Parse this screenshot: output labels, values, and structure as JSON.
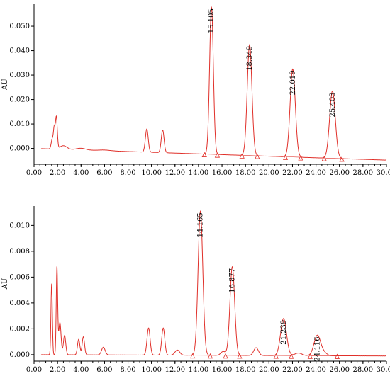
{
  "chart_data": [
    {
      "type": "line",
      "ylabel": "AU",
      "xlim": [
        0,
        30
      ],
      "ylim": [
        -0.0065,
        0.059
      ],
      "x_ticks": [
        0,
        2,
        4,
        6,
        8,
        10,
        12,
        14,
        16,
        18,
        20,
        22,
        24,
        26,
        28,
        30
      ],
      "x_tick_labels": [
        "0.00",
        "2.00",
        "4.00",
        "6.00",
        "8.00",
        "10.00",
        "12.00",
        "14.00",
        "16.00",
        "18.00",
        "20.00",
        "22.00",
        "24.00",
        "26.00",
        "28.00",
        "30.00"
      ],
      "y_ticks": [
        0.0,
        0.01,
        0.02,
        0.03,
        0.04,
        0.05
      ],
      "y_tick_labels": [
        "0.000",
        "0.010",
        "0.020",
        "0.030",
        "0.040",
        "0.050"
      ],
      "baseline": [
        [
          0,
          0.0
        ],
        [
          30,
          -0.0048
        ]
      ],
      "noise": [
        [
          1.55,
          0.004,
          0.09
        ],
        [
          1.72,
          0.008,
          0.07
        ],
        [
          1.9,
          0.013,
          0.08
        ],
        [
          2.5,
          0.0015,
          0.3
        ],
        [
          4.0,
          0.0007,
          0.4
        ],
        [
          6.0,
          0.0003,
          0.5
        ],
        [
          9.6,
          0.0095,
          0.12
        ],
        [
          10.95,
          0.0093,
          0.12
        ]
      ],
      "peaks": [
        {
          "label": "15.105",
          "x": 15.105,
          "y": 0.0578,
          "sigma": 0.16,
          "start": 14.5,
          "end": 15.6
        },
        {
          "label": "18.349",
          "x": 18.349,
          "y": 0.0425,
          "sigma": 0.2,
          "start": 17.7,
          "end": 19.0
        },
        {
          "label": "22.019",
          "x": 22.019,
          "y": 0.0325,
          "sigma": 0.22,
          "start": 21.4,
          "end": 22.7
        },
        {
          "label": "25.403",
          "x": 25.403,
          "y": 0.0235,
          "sigma": 0.24,
          "start": 24.7,
          "end": 26.2
        }
      ]
    },
    {
      "type": "line",
      "ylabel": "AU",
      "xlim": [
        0,
        30
      ],
      "ylim": [
        -0.0005,
        0.0115
      ],
      "x_ticks": [
        0,
        2,
        4,
        6,
        8,
        10,
        12,
        14,
        16,
        18,
        20,
        22,
        24,
        26,
        28,
        30
      ],
      "x_tick_labels": [
        "0.00",
        "2.00",
        "4.00",
        "6.00",
        "8.00",
        "10.00",
        "12.00",
        "14.00",
        "16.00",
        "18.00",
        "20.00",
        "22.00",
        "24.00",
        "26.00",
        "28.00",
        "30.00"
      ],
      "y_ticks": [
        0.0,
        0.002,
        0.004,
        0.006,
        0.008,
        0.01
      ],
      "y_tick_labels": [
        "0.000",
        "0.002",
        "0.004",
        "0.006",
        "0.008",
        "0.010"
      ],
      "baseline": [
        [
          0,
          0.0
        ],
        [
          30,
          -0.0001
        ]
      ],
      "noise": [
        [
          1.5,
          0.0055,
          0.06
        ],
        [
          1.95,
          0.0068,
          0.06
        ],
        [
          2.2,
          0.0025,
          0.1
        ],
        [
          2.6,
          0.0015,
          0.1
        ],
        [
          3.8,
          0.0012,
          0.1
        ],
        [
          4.2,
          0.0014,
          0.1
        ],
        [
          5.9,
          0.0006,
          0.15
        ],
        [
          9.75,
          0.0021,
          0.13
        ],
        [
          11.0,
          0.0021,
          0.13
        ],
        [
          12.2,
          0.0004,
          0.2
        ],
        [
          16.1,
          0.0003,
          0.2
        ],
        [
          18.9,
          0.0006,
          0.2
        ],
        [
          22.5,
          0.0002,
          0.3
        ],
        [
          24.7,
          0.0002,
          0.25
        ]
      ],
      "peaks": [
        {
          "label": "14.165",
          "x": 14.165,
          "y": 0.0111,
          "sigma": 0.2,
          "start": 13.5,
          "end": 15.0
        },
        {
          "label": "16.877",
          "x": 16.877,
          "y": 0.0068,
          "sigma": 0.2,
          "start": 16.3,
          "end": 17.5
        },
        {
          "label": "21.239",
          "x": 21.239,
          "y": 0.0028,
          "sigma": 0.25,
          "start": 20.6,
          "end": 21.9
        },
        {
          "label": "24.116",
          "x": 24.116,
          "y": 0.0015,
          "sigma": 0.28,
          "start": 23.5,
          "end": 25.8
        }
      ]
    }
  ]
}
